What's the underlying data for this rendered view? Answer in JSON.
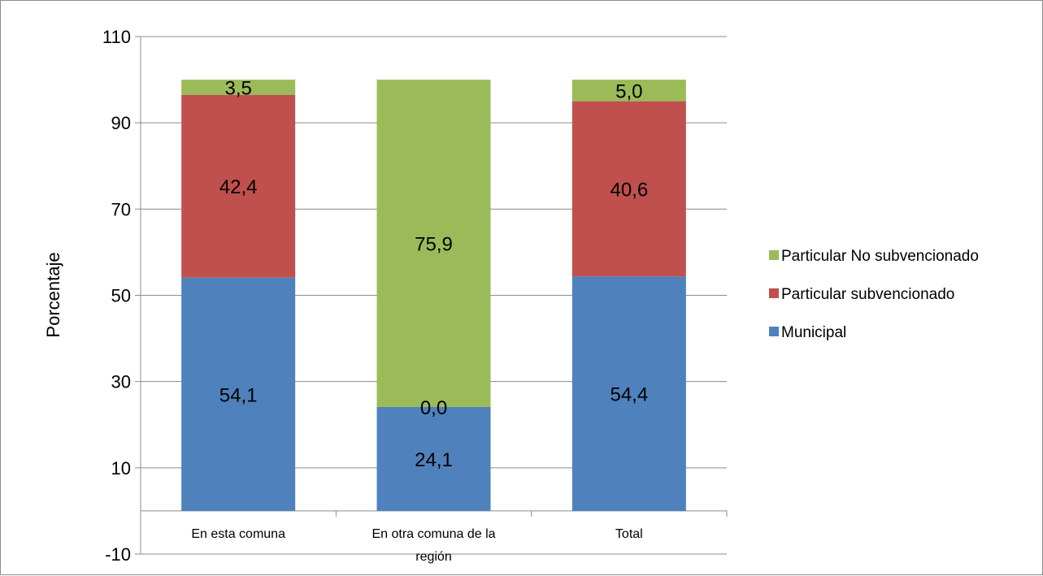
{
  "chart_data": {
    "type": "bar",
    "stacked": true,
    "title": "",
    "xlabel": "",
    "ylabel": "Porcentaje",
    "ylim": [
      -10,
      110
    ],
    "yticks": [
      -10,
      10,
      30,
      50,
      70,
      90,
      110
    ],
    "ytick_labels": [
      "-10",
      "10",
      "30",
      "50",
      "70",
      "90",
      "110"
    ],
    "grid": true,
    "legend_position": "right",
    "categories": [
      [
        "En esta comuna"
      ],
      [
        "En otra comuna de la",
        "región"
      ],
      [
        "Total"
      ]
    ],
    "series": [
      {
        "name": "Municipal",
        "color": "#4f81bd",
        "values": [
          54.1,
          24.1,
          54.4
        ],
        "labels": [
          "54,1",
          "24,1",
          "54,4"
        ]
      },
      {
        "name": "Particular subvencionado",
        "color": "#c0504d",
        "values": [
          42.4,
          0.0,
          40.6
        ],
        "labels": [
          "42,4",
          "0,0",
          "40,6"
        ]
      },
      {
        "name": "Particular No subvencionado",
        "color": "#9bbb59",
        "values": [
          3.5,
          75.9,
          5.0
        ],
        "labels": [
          "3,5",
          "75,9",
          "5,0"
        ]
      }
    ]
  }
}
